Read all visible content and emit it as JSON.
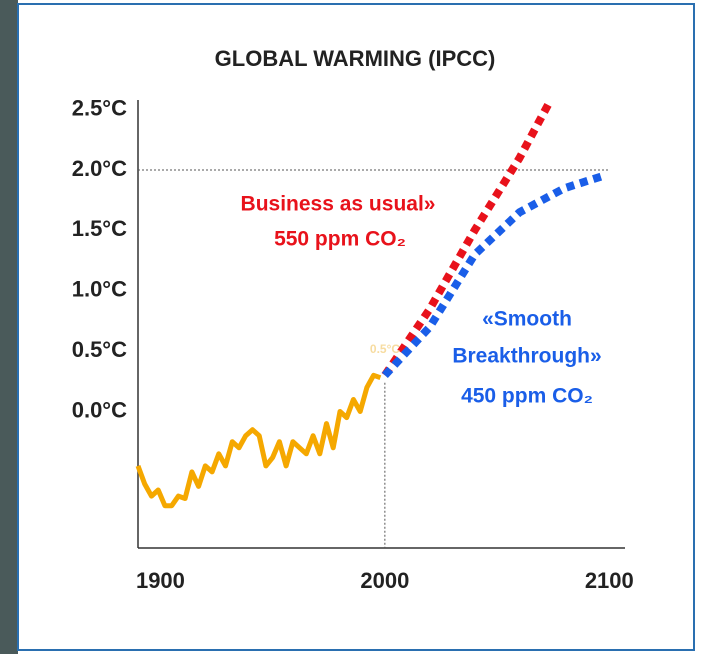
{
  "chart_data": {
    "type": "line",
    "title": "GLOBAL WARMING  (IPCC)",
    "xlim": [
      1890,
      2107
    ],
    "xticks": [
      1900,
      2000,
      2100
    ],
    "ylim": [
      -1.13,
      2.58
    ],
    "yticks": [
      {
        "value": 0,
        "label": "0.0°C"
      },
      {
        "value": 0.5,
        "label": "0.5°C"
      },
      {
        "value": 1,
        "label": "1.0°C"
      },
      {
        "value": 1.5,
        "label": "1.5°C"
      },
      {
        "value": 2,
        "label": "2.0°C"
      },
      {
        "value": 2.5,
        "label": "2.5°C"
      }
    ],
    "reference_y": 2,
    "reference_x": 2000,
    "series": [
      {
        "color": "#f5a800",
        "style": "solid",
        "x": [
          1890,
          1893,
          1896,
          1899,
          1902,
          1905,
          1908,
          1911,
          1914,
          1917,
          1920,
          1923,
          1926,
          1929,
          1932,
          1935,
          1938,
          1941,
          1944,
          1947,
          1950,
          1953,
          1956,
          1959,
          1962,
          1965,
          1968,
          1971,
          1974,
          1977,
          1980,
          1983,
          1986,
          1989,
          1992,
          1995,
          1998
        ],
        "values": [
          -0.45,
          -0.6,
          -0.7,
          -0.65,
          -0.78,
          -0.78,
          -0.7,
          -0.72,
          -0.5,
          -0.62,
          -0.45,
          -0.5,
          -0.35,
          -0.45,
          -0.25,
          -0.3,
          -0.2,
          -0.15,
          -0.2,
          -0.45,
          -0.38,
          -0.25,
          -0.45,
          -0.25,
          -0.3,
          -0.35,
          -0.2,
          -0.35,
          -0.1,
          -0.3,
          0.0,
          -0.05,
          0.1,
          0.0,
          0.2,
          0.3,
          0.28
        ]
      },
      {
        "color": "#e8121b",
        "style": "dotted",
        "x": [
          2000,
          2020,
          2040,
          2060,
          2073
        ],
        "values": [
          0.3,
          0.85,
          1.5,
          2.1,
          2.55
        ]
      },
      {
        "color": "#1a5ee8",
        "style": "dotted",
        "x": [
          2000,
          2020,
          2040,
          2060,
          2080,
          2097
        ],
        "values": [
          0.3,
          0.7,
          1.3,
          1.65,
          1.85,
          1.95
        ]
      }
    ],
    "annotations": [
      {
        "text": "Business as usual»",
        "color": "#e8121b"
      },
      {
        "text": "550 ppm CO₂",
        "color": "#e8121b"
      },
      {
        "text": "«Smooth",
        "color": "#1a5ee8"
      },
      {
        "text": "Breakthrough»",
        "color": "#1a5ee8"
      },
      {
        "text": "450 ppm CO₂",
        "color": "#1a5ee8"
      },
      {
        "text": "0.5°C",
        "color": "#f7dca0"
      }
    ]
  }
}
